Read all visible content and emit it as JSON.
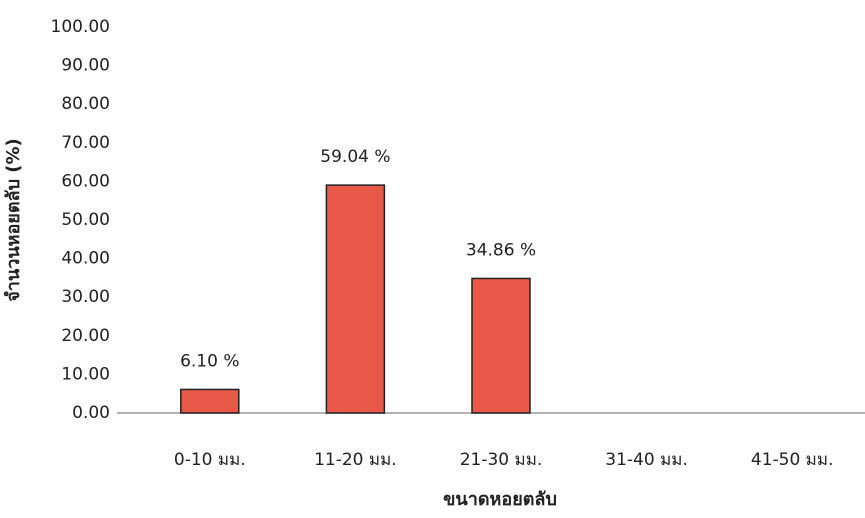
{
  "chart_data": {
    "type": "bar",
    "y_axis_title": "จำนวนหอยตลับ (%)",
    "x_axis_title": "ขนาดหอยตลับ",
    "categories": [
      "0-10 มม.",
      "11-20 มม.",
      "21-30 มม.",
      "31-40 มม.",
      "41-50 มม."
    ],
    "values": [
      6.1,
      59.04,
      34.86,
      null,
      null
    ],
    "value_labels": [
      "6.10 %",
      "59.04 %",
      "34.86 %",
      null,
      null
    ],
    "color": "#e8594a",
    "ylim": [
      0,
      100
    ],
    "yticks": [
      {
        "value": 0,
        "label": "0.00"
      },
      {
        "value": 10,
        "label": "10.00"
      },
      {
        "value": 20,
        "label": "20.00"
      },
      {
        "value": 30,
        "label": "30.00"
      },
      {
        "value": 40,
        "label": "40.00"
      },
      {
        "value": 50,
        "label": "50.00"
      },
      {
        "value": 60,
        "label": "60.00"
      },
      {
        "value": 70,
        "label": "70.00"
      },
      {
        "value": 80,
        "label": "80.00"
      },
      {
        "value": 90,
        "label": "90.00"
      },
      {
        "value": 100,
        "label": "100.00"
      }
    ],
    "grid": false
  }
}
